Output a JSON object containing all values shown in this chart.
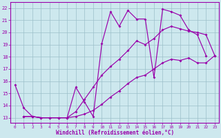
{
  "xlabel": "Windchill (Refroidissement éolien,°C)",
  "xlim": [
    -0.5,
    23.5
  ],
  "ylim": [
    12.6,
    22.5
  ],
  "yticks": [
    13,
    14,
    15,
    16,
    17,
    18,
    19,
    20,
    21,
    22
  ],
  "xticks": [
    0,
    1,
    2,
    3,
    4,
    5,
    6,
    7,
    8,
    9,
    10,
    11,
    12,
    13,
    14,
    15,
    16,
    17,
    18,
    19,
    20,
    21,
    22,
    23
  ],
  "bg_color": "#cde8ee",
  "grid_color": "#9bbfc9",
  "line_color": "#9900aa",
  "curve1_x": [
    0,
    1,
    2,
    3,
    4,
    5,
    6,
    7,
    8,
    9,
    10,
    11,
    12,
    13,
    14,
    15,
    16,
    17,
    18,
    19,
    20,
    21,
    22
  ],
  "curve1_y": [
    15.7,
    13.8,
    13.1,
    13.0,
    13.0,
    13.0,
    13.0,
    15.5,
    14.3,
    13.1,
    19.1,
    21.7,
    20.5,
    21.8,
    21.1,
    21.1,
    16.3,
    21.9,
    21.7,
    21.4,
    20.2,
    19.8,
    18.1
  ],
  "curve2_x": [
    1,
    2,
    3,
    4,
    5,
    6,
    7,
    8,
    9,
    10,
    11,
    12,
    13,
    14,
    15,
    16,
    17,
    18,
    19,
    20,
    21,
    22,
    23
  ],
  "curve2_y": [
    13.1,
    13.1,
    13.0,
    13.0,
    13.0,
    13.0,
    13.5,
    14.5,
    15.5,
    16.5,
    17.2,
    17.8,
    18.5,
    19.3,
    19.0,
    19.5,
    20.2,
    20.5,
    20.3,
    20.1,
    20.0,
    19.8,
    18.1
  ],
  "curve3_x": [
    1,
    2,
    3,
    4,
    5,
    6,
    7,
    8,
    9,
    10,
    11,
    12,
    13,
    14,
    15,
    16,
    17,
    18,
    19,
    20,
    21,
    22,
    23
  ],
  "curve3_y": [
    13.1,
    13.1,
    13.0,
    13.0,
    13.0,
    13.0,
    13.1,
    13.3,
    13.6,
    14.1,
    14.7,
    15.2,
    15.8,
    16.3,
    16.5,
    17.0,
    17.5,
    17.8,
    17.7,
    17.9,
    17.5,
    17.5,
    18.1
  ]
}
